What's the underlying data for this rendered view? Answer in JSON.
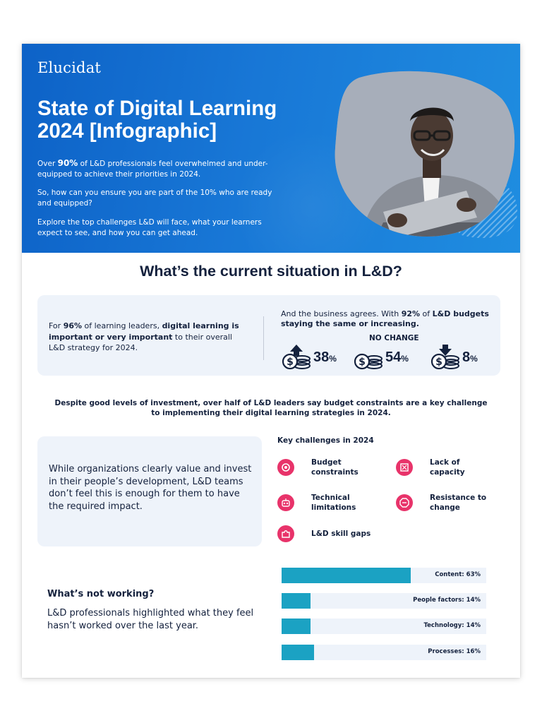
{
  "header": {
    "logo": "Elucidat",
    "title_line1": "State of Digital Learning",
    "title_line2": "2024 [Infographic]",
    "p1_prefix": "Over ",
    "p1_bold": "90%",
    "p1_suffix": " of L&D professionals feel overwhelmed and under-equipped to achieve their priorities in 2024.",
    "p2": "So, how can you ensure you are part of the 10% who are ready and equipped?",
    "p3": "Explore the top challenges L&D will face, what your learners expect to see, and how you can get ahead."
  },
  "situation": {
    "title": "What’s the current situation in L&D?",
    "left_prefix": "For ",
    "left_pct": "96%",
    "left_mid": " of learning leaders, ",
    "left_bold": "digital learning is important or very important",
    "left_suffix": " to their overall L&D strategy for 2024.",
    "right_prefix": "And the business agrees. With ",
    "right_pct": "92%",
    "right_mid": " of ",
    "right_bold": "L&D budgets staying the same or increasing.",
    "no_change_label": "NO CHANGE",
    "stats": [
      {
        "value": "38",
        "unit": "%",
        "direction": "up"
      },
      {
        "value": "54",
        "unit": "%",
        "direction": "none"
      },
      {
        "value": "8",
        "unit": "%",
        "direction": "down"
      }
    ]
  },
  "budget_note": "Despite good levels of investment, over half of L&D leaders say budget constraints are a key challenge to implementing their digital learning strategies in 2024.",
  "value_text": "While organizations clearly value and invest in their people’s development, L&D teams don’t feel this is enough for them to have the required impact.",
  "challenges": {
    "title": "Key challenges in 2024",
    "items": [
      {
        "label": "Budget constraints",
        "icon": "coins-icon"
      },
      {
        "label": "Lack of capacity",
        "icon": "expand-arrows-icon"
      },
      {
        "label": "Technical limitations",
        "icon": "robot-icon"
      },
      {
        "label": "Resistance to change",
        "icon": "stop-sign-icon"
      },
      {
        "label": "L&D skill gaps",
        "icon": "puzzle-icon"
      }
    ]
  },
  "not_working": {
    "title": "What’s not working?",
    "text": "L&D professionals highlighted what they feel hasn’t worked over the last year."
  },
  "colors": {
    "hero_blue": "#1877d6",
    "accent_pink": "#e8336a",
    "bar_teal": "#1ba2c3",
    "navy": "#14213d"
  },
  "chart_data": {
    "type": "bar",
    "orientation": "horizontal",
    "categories": [
      "Content",
      "People factors",
      "Technology",
      "Processes"
    ],
    "labels": [
      "Content: 63%",
      "People factors: 14%",
      "Technology: 14%",
      "Processes: 16%"
    ],
    "values": [
      63,
      14,
      14,
      16
    ],
    "unit": "%",
    "xlim": [
      0,
      100
    ]
  }
}
